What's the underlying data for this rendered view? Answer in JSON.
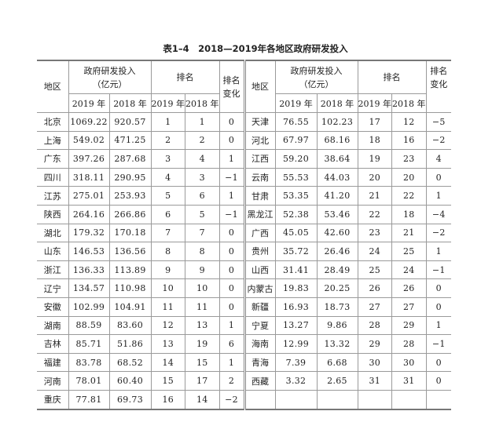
{
  "title": "表1–4　2018—2019年各地区政府研发投入",
  "headers": {
    "region": "地区",
    "investment": "政府研发投入\n（亿元）",
    "investment_line1": "政府研发投入",
    "investment_line2": "（亿元）",
    "rank": "排名",
    "rank_change_line1": "排名",
    "rank_change_line2": "变化",
    "y2019": "2019 年",
    "y2018": "2018 年"
  },
  "left_rows": [
    {
      "region": "北京",
      "inv2019": "1069.22",
      "inv2018": "920.57",
      "rank2019": "1",
      "rank2018": "1",
      "change": "0"
    },
    {
      "region": "上海",
      "inv2019": "549.02",
      "inv2018": "471.25",
      "rank2019": "2",
      "rank2018": "2",
      "change": "0"
    },
    {
      "region": "广东",
      "inv2019": "397.26",
      "inv2018": "287.68",
      "rank2019": "3",
      "rank2018": "4",
      "change": "1"
    },
    {
      "region": "四川",
      "inv2019": "318.11",
      "inv2018": "290.95",
      "rank2019": "4",
      "rank2018": "3",
      "change": "−1"
    },
    {
      "region": "江苏",
      "inv2019": "275.01",
      "inv2018": "253.93",
      "rank2019": "5",
      "rank2018": "6",
      "change": "1"
    },
    {
      "region": "陕西",
      "inv2019": "264.16",
      "inv2018": "266.86",
      "rank2019": "6",
      "rank2018": "5",
      "change": "−1"
    },
    {
      "region": "湖北",
      "inv2019": "179.32",
      "inv2018": "170.18",
      "rank2019": "7",
      "rank2018": "7",
      "change": "0"
    },
    {
      "region": "山东",
      "inv2019": "146.53",
      "inv2018": "136.56",
      "rank2019": "8",
      "rank2018": "8",
      "change": "0"
    },
    {
      "region": "浙江",
      "inv2019": "136.33",
      "inv2018": "113.89",
      "rank2019": "9",
      "rank2018": "9",
      "change": "0"
    },
    {
      "region": "辽宁",
      "inv2019": "134.57",
      "inv2018": "110.98",
      "rank2019": "10",
      "rank2018": "10",
      "change": "0"
    },
    {
      "region": "安徽",
      "inv2019": "102.99",
      "inv2018": "104.91",
      "rank2019": "11",
      "rank2018": "11",
      "change": "0"
    },
    {
      "region": "湖南",
      "inv2019": "88.59",
      "inv2018": "83.60",
      "rank2019": "12",
      "rank2018": "13",
      "change": "1"
    },
    {
      "region": "吉林",
      "inv2019": "85.71",
      "inv2018": "51.86",
      "rank2019": "13",
      "rank2018": "19",
      "change": "6"
    },
    {
      "region": "福建",
      "inv2019": "83.78",
      "inv2018": "68.52",
      "rank2019": "14",
      "rank2018": "15",
      "change": "1"
    },
    {
      "region": "河南",
      "inv2019": "78.01",
      "inv2018": "60.40",
      "rank2019": "15",
      "rank2018": "17",
      "change": "2"
    },
    {
      "region": "重庆",
      "inv2019": "77.81",
      "inv2018": "69.73",
      "rank2019": "16",
      "rank2018": "14",
      "change": "−2"
    }
  ],
  "right_rows": [
    {
      "region": "天津",
      "inv2019": "76.55",
      "inv2018": "102.23",
      "rank2019": "17",
      "rank2018": "12",
      "change": "−5"
    },
    {
      "region": "河北",
      "inv2019": "67.97",
      "inv2018": "68.16",
      "rank2019": "18",
      "rank2018": "16",
      "change": "−2"
    },
    {
      "region": "江西",
      "inv2019": "59.20",
      "inv2018": "38.64",
      "rank2019": "19",
      "rank2018": "23",
      "change": "4"
    },
    {
      "region": "云南",
      "inv2019": "55.53",
      "inv2018": "44.03",
      "rank2019": "20",
      "rank2018": "20",
      "change": "0"
    },
    {
      "region": "甘肃",
      "inv2019": "53.35",
      "inv2018": "41.20",
      "rank2019": "21",
      "rank2018": "22",
      "change": "1"
    },
    {
      "region": "黑龙江",
      "inv2019": "52.38",
      "inv2018": "53.46",
      "rank2019": "22",
      "rank2018": "18",
      "change": "−4"
    },
    {
      "region": "广西",
      "inv2019": "45.05",
      "inv2018": "42.60",
      "rank2019": "23",
      "rank2018": "21",
      "change": "−2"
    },
    {
      "region": "贵州",
      "inv2019": "35.72",
      "inv2018": "26.46",
      "rank2019": "24",
      "rank2018": "25",
      "change": "1"
    },
    {
      "region": "山西",
      "inv2019": "31.41",
      "inv2018": "28.49",
      "rank2019": "25",
      "rank2018": "24",
      "change": "−1"
    },
    {
      "region": "内蒙古",
      "inv2019": "19.83",
      "inv2018": "20.25",
      "rank2019": "26",
      "rank2018": "26",
      "change": "0"
    },
    {
      "region": "新疆",
      "inv2019": "16.93",
      "inv2018": "18.73",
      "rank2019": "27",
      "rank2018": "27",
      "change": "0"
    },
    {
      "region": "宁夏",
      "inv2019": "13.27",
      "inv2018": "9.86",
      "rank2019": "28",
      "rank2018": "29",
      "change": "1"
    },
    {
      "region": "海南",
      "inv2019": "12.99",
      "inv2018": "13.32",
      "rank2019": "29",
      "rank2018": "28",
      "change": "−1"
    },
    {
      "region": "青海",
      "inv2019": "7.39",
      "inv2018": "6.68",
      "rank2019": "30",
      "rank2018": "30",
      "change": "0"
    },
    {
      "region": "西藏",
      "inv2019": "3.32",
      "inv2018": "2.65",
      "rank2019": "31",
      "rank2018": "31",
      "change": "0"
    },
    {
      "region": "",
      "inv2019": "",
      "inv2018": "",
      "rank2019": "",
      "rank2018": "",
      "change": ""
    }
  ]
}
